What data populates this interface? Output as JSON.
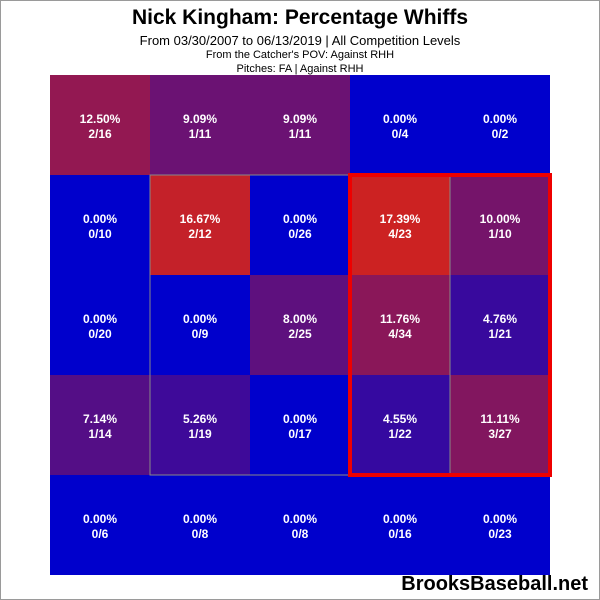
{
  "header": {
    "title": "Nick Kingham: Percentage Whiffs",
    "subtitle": "From 03/30/2007 to 06/13/2019 | All Competition Levels",
    "pov": "From the Catcher's POV:  Against RHH",
    "pitches": "Pitches:  FA  |  Against RHH"
  },
  "brand": "BrooksBaseball.net",
  "colors": {
    "low": "#0000cc",
    "high": "#cc2222",
    "strike_zone_border": "#888888",
    "highlight_box": "#ee0000",
    "text": "#ffffff"
  },
  "chart_data": {
    "type": "heatmap",
    "rows": 5,
    "cols": 5,
    "cells": [
      [
        {
          "pct": "12.50%",
          "count": "2/16",
          "value": 12.5
        },
        {
          "pct": "9.09%",
          "count": "1/11",
          "value": 9.09
        },
        {
          "pct": "9.09%",
          "count": "1/11",
          "value": 9.09
        },
        {
          "pct": "0.00%",
          "count": "0/4",
          "value": 0
        },
        {
          "pct": "0.00%",
          "count": "0/2",
          "value": 0
        }
      ],
      [
        {
          "pct": "0.00%",
          "count": "0/10",
          "value": 0
        },
        {
          "pct": "16.67%",
          "count": "2/12",
          "value": 16.67
        },
        {
          "pct": "0.00%",
          "count": "0/26",
          "value": 0
        },
        {
          "pct": "17.39%",
          "count": "4/23",
          "value": 17.39
        },
        {
          "pct": "10.00%",
          "count": "1/10",
          "value": 10.0
        }
      ],
      [
        {
          "pct": "0.00%",
          "count": "0/20",
          "value": 0
        },
        {
          "pct": "0.00%",
          "count": "0/9",
          "value": 0
        },
        {
          "pct": "8.00%",
          "count": "2/25",
          "value": 8.0
        },
        {
          "pct": "11.76%",
          "count": "4/34",
          "value": 11.76
        },
        {
          "pct": "4.76%",
          "count": "1/21",
          "value": 4.76
        }
      ],
      [
        {
          "pct": "7.14%",
          "count": "1/14",
          "value": 7.14
        },
        {
          "pct": "5.26%",
          "count": "1/19",
          "value": 5.26
        },
        {
          "pct": "0.00%",
          "count": "0/17",
          "value": 0
        },
        {
          "pct": "4.55%",
          "count": "1/22",
          "value": 4.55
        },
        {
          "pct": "11.11%",
          "count": "3/27",
          "value": 11.11
        }
      ],
      [
        {
          "pct": "0.00%",
          "count": "0/6",
          "value": 0
        },
        {
          "pct": "0.00%",
          "count": "0/8",
          "value": 0
        },
        {
          "pct": "0.00%",
          "count": "0/8",
          "value": 0
        },
        {
          "pct": "0.00%",
          "count": "0/16",
          "value": 0
        },
        {
          "pct": "0.00%",
          "count": "0/23",
          "value": 0
        }
      ]
    ],
    "strike_zone": {
      "row_start": 1,
      "row_end": 3,
      "col_start": 1,
      "col_end": 3
    },
    "highlight": {
      "row_start": 1,
      "row_end": 3,
      "col_start": 3,
      "col_end": 4
    },
    "color_scale_max": 17.39
  }
}
